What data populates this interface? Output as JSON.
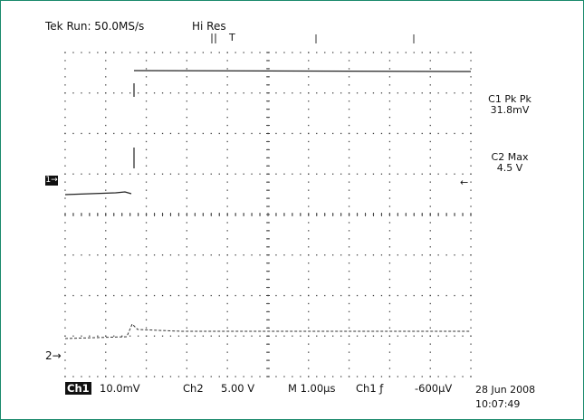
{
  "header": {
    "status": "Tek Run: 50.0MS/s",
    "mode": "Hi Res",
    "trigger_letter": "T"
  },
  "measurements": {
    "m1_label": "C1 Pk Pk",
    "m1_value": "31.8mV",
    "m2_label": "C2 Max",
    "m2_value": "4.5 V"
  },
  "markers": {
    "ch1": "1→",
    "ch2": "2→",
    "trigger_level": "←"
  },
  "bottom": {
    "ch1_label": "Ch1",
    "ch1_scale": "10.0mV",
    "ch2_label": "Ch2",
    "ch2_scale": "5.00 V",
    "timebase": "M 1.00µs",
    "trigger": "Ch1 ƒ",
    "trigger_level": "-600µV",
    "date": "28 Jun 2008",
    "time": "10:07:49"
  },
  "grid": {
    "divisions_x": 10,
    "divisions_y": 8
  },
  "colors": {
    "frame": "#1a8a6c",
    "trace": "#222222",
    "grid": "#444444"
  }
}
